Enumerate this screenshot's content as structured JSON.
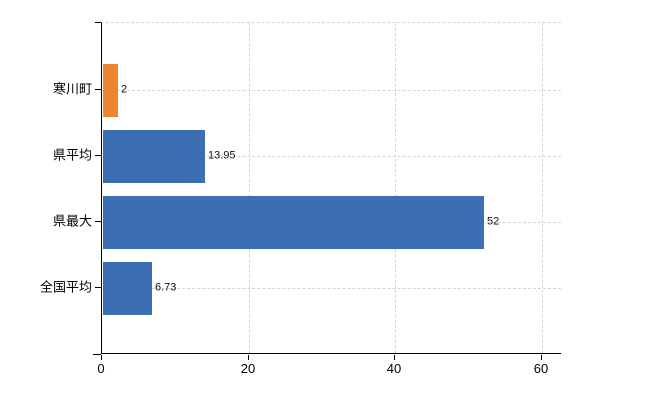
{
  "chart_data": {
    "type": "bar",
    "orientation": "horizontal",
    "categories": [
      "寒川町",
      "県平均",
      "県最大",
      "全国平均"
    ],
    "values": [
      2,
      13.95,
      52,
      6.73
    ],
    "value_labels": [
      "2",
      "13.95",
      "52",
      "6.73"
    ],
    "bar_colors": [
      "#ee8530",
      "#3d6eb3",
      "#3d6eb3",
      "#3d6eb3"
    ],
    "x_ticks": [
      0,
      20,
      40,
      60
    ],
    "x_tick_labels": [
      "0",
      "20",
      "40",
      "60"
    ],
    "xlim": [
      0,
      62.7
    ],
    "grid": true,
    "legend": "none",
    "colors": {
      "bar_blue": "#3d6eb3",
      "bar_orange": "#ee8530",
      "gridline": "#d4d7d4",
      "axis": "#000000",
      "text": "#000000",
      "background": "#ffffff"
    }
  }
}
